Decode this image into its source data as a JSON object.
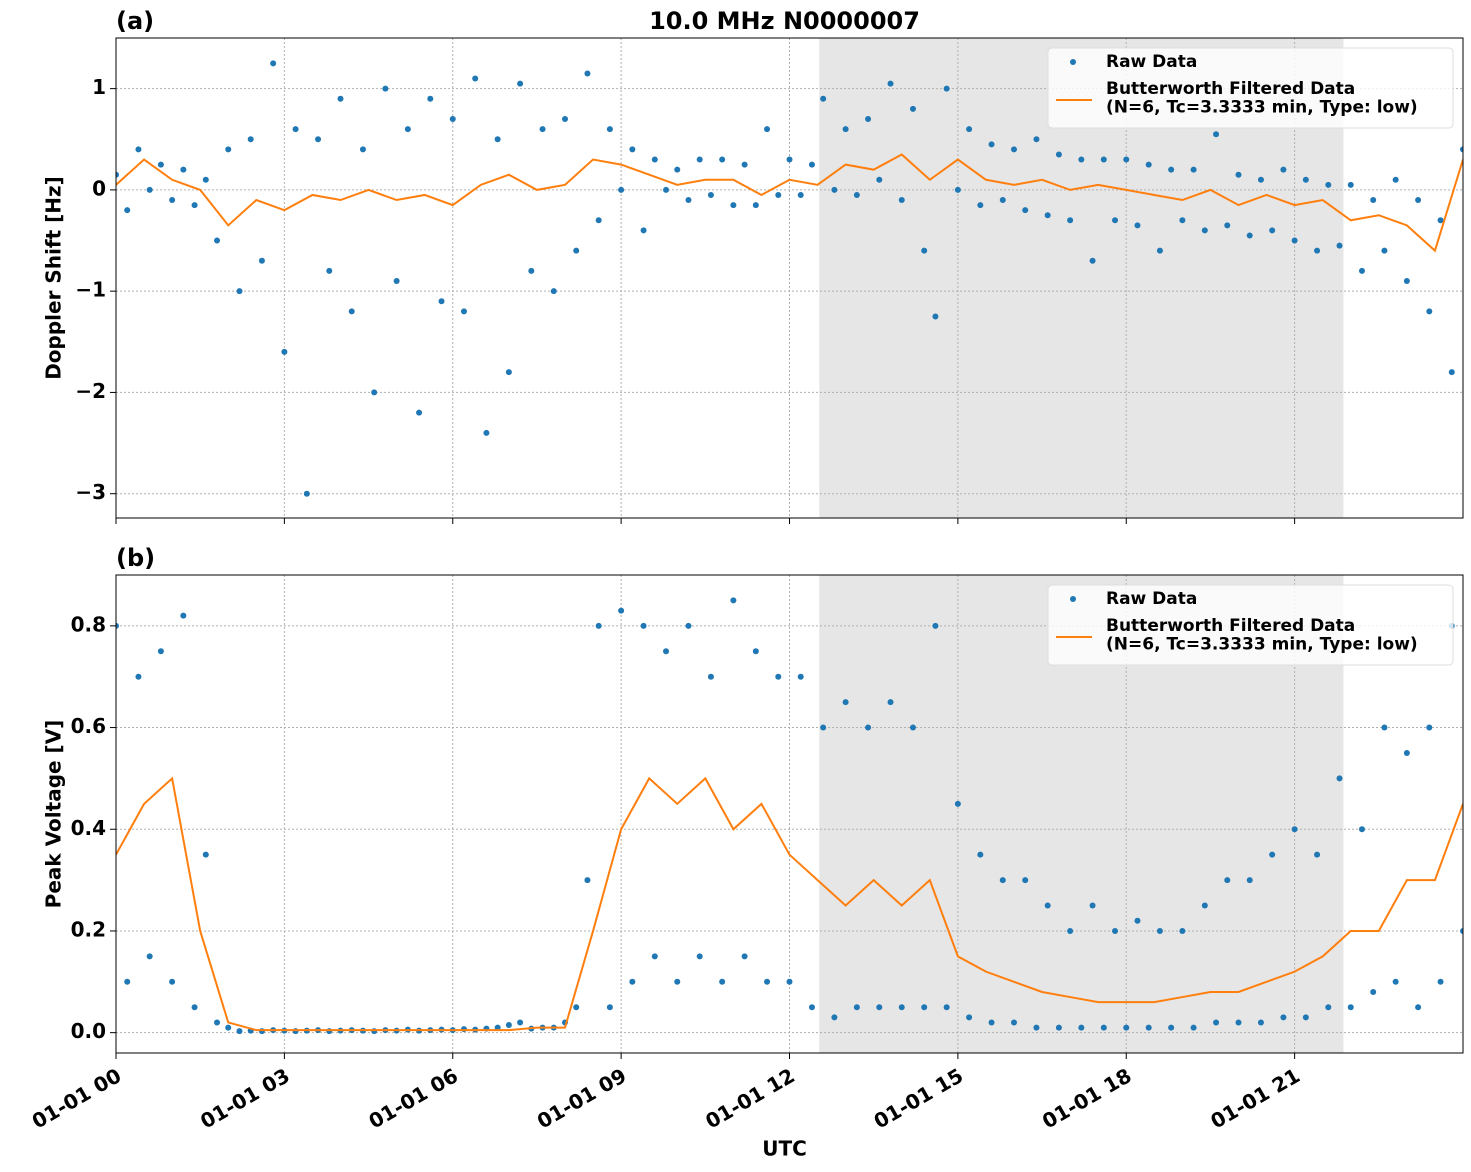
{
  "chart_data": [
    {
      "type": "scatter_line",
      "title": "10.0 MHz N0000007",
      "panel_label": "(a)",
      "y_label": "Doppler Shift [Hz]",
      "xlim": [
        0,
        24
      ],
      "xticks": [
        0,
        3,
        6,
        9,
        12,
        15,
        18,
        21
      ],
      "ylim": [
        -3.24,
        1.5
      ],
      "yticks": [
        {
          "value": -3,
          "label": "−3"
        },
        {
          "value": -2,
          "label": "−2"
        },
        {
          "value": -1,
          "label": "−1"
        },
        0,
        1
      ],
      "grid": true,
      "legend": "upper right",
      "shade": [
        12.53,
        21.87
      ],
      "shade_color": "#e6e6e6",
      "series": [
        {
          "name": "Raw Data",
          "type": "scatter",
          "color": "#1f77b4",
          "x": [
            0,
            0.2,
            0.4,
            0.6,
            0.8,
            1,
            1.2,
            1.4,
            1.6,
            1.8,
            2,
            2.2,
            2.4,
            2.6,
            2.8,
            3,
            3.2,
            3.4,
            3.6,
            3.8,
            4,
            4.2,
            4.4,
            4.6,
            4.8,
            5,
            5.2,
            5.4,
            5.6,
            5.8,
            6,
            6.2,
            6.4,
            6.6,
            6.8,
            7,
            7.2,
            7.4,
            7.6,
            7.8,
            8,
            8.2,
            8.4,
            8.6,
            8.8,
            9,
            9.2,
            9.4,
            9.6,
            9.8,
            10,
            10.2,
            10.4,
            10.6,
            10.8,
            11,
            11.2,
            11.4,
            11.6,
            11.8,
            12,
            12.2,
            12.4,
            12.6,
            12.8,
            13,
            13.2,
            13.4,
            13.6,
            13.8,
            14,
            14.2,
            14.4,
            14.6,
            14.8,
            15,
            15.2,
            15.4,
            15.6,
            15.8,
            16,
            16.2,
            16.4,
            16.6,
            16.8,
            17,
            17.2,
            17.4,
            17.6,
            17.8,
            18,
            18.2,
            18.4,
            18.6,
            18.8,
            19,
            19.2,
            19.4,
            19.6,
            19.8,
            20,
            20.2,
            20.4,
            20.6,
            20.8,
            21,
            21.2,
            21.4,
            21.6,
            21.8,
            22,
            22.2,
            22.4,
            22.6,
            22.8,
            23,
            23.2,
            23.4,
            23.6,
            23.8,
            24
          ],
          "values": [
            0.15,
            -0.2,
            0.4,
            0,
            0.25,
            -0.1,
            0.2,
            -0.15,
            0.1,
            -0.5,
            0.4,
            -1,
            0.5,
            -0.7,
            1.25,
            -1.6,
            0.6,
            -3,
            0.5,
            -0.8,
            0.9,
            -1.2,
            0.4,
            -2,
            1,
            -0.9,
            0.6,
            -2.2,
            0.9,
            -1.1,
            0.7,
            -1.2,
            1.1,
            -2.4,
            0.5,
            -1.8,
            1.05,
            -0.8,
            0.6,
            -1,
            0.7,
            -0.6,
            1.15,
            -0.3,
            0.6,
            0,
            0.4,
            -0.4,
            0.3,
            0,
            0.2,
            -0.1,
            0.3,
            -0.05,
            0.3,
            -0.15,
            0.25,
            -0.15,
            0.6,
            -0.05,
            0.3,
            -0.05,
            0.25,
            0.9,
            0,
            0.6,
            -0.05,
            0.7,
            0.1,
            1.05,
            -0.1,
            0.8,
            -0.6,
            -1.25,
            1,
            0,
            0.6,
            -0.15,
            0.45,
            -0.1,
            0.4,
            -0.2,
            0.5,
            -0.25,
            0.35,
            -0.3,
            0.3,
            -0.7,
            0.3,
            -0.3,
            0.3,
            -0.35,
            0.25,
            -0.6,
            0.2,
            -0.3,
            0.2,
            -0.4,
            0.55,
            -0.35,
            0.15,
            -0.45,
            0.1,
            -0.4,
            0.2,
            -0.5,
            0.1,
            -0.6,
            0.05,
            -0.55,
            0.05,
            -0.8,
            -0.1,
            -0.6,
            0.1,
            -0.9,
            -0.1,
            -1.2,
            -0.3,
            -1.8,
            0.4
          ]
        },
        {
          "name": "Butterworth Filtered Data\n(N=6, Tc=3.3333 min, Type: low)",
          "type": "line",
          "color": "#ff7f0e",
          "x": [
            0,
            0.5,
            1,
            1.5,
            2,
            2.5,
            3,
            3.5,
            4,
            4.5,
            5,
            5.5,
            6,
            6.5,
            7,
            7.5,
            8,
            8.5,
            9,
            9.5,
            10,
            10.5,
            11,
            11.5,
            12,
            12.5,
            13,
            13.5,
            14,
            14.5,
            15,
            15.5,
            16,
            16.5,
            17,
            17.5,
            18,
            18.5,
            19,
            19.5,
            20,
            20.5,
            21,
            21.5,
            22,
            22.5,
            23,
            23.5,
            24
          ],
          "values": [
            0.05,
            0.3,
            0.1,
            0,
            -0.35,
            -0.1,
            -0.2,
            -0.05,
            -0.1,
            0,
            -0.1,
            -0.05,
            -0.15,
            0.05,
            0.15,
            0,
            0.05,
            0.3,
            0.25,
            0.15,
            0.05,
            0.1,
            0.1,
            -0.05,
            0.1,
            0.05,
            0.25,
            0.2,
            0.35,
            0.1,
            0.3,
            0.1,
            0.05,
            0.1,
            0,
            0.05,
            0,
            -0.05,
            -0.1,
            0,
            -0.15,
            -0.05,
            -0.15,
            -0.1,
            -0.3,
            -0.25,
            -0.35,
            -0.6,
            0.3
          ]
        }
      ]
    },
    {
      "type": "scatter_line",
      "panel_label": "(b)",
      "y_label": "Peak Voltage [V]",
      "x_label": "UTC",
      "xlim": [
        0,
        24
      ],
      "xticks": [
        {
          "value": 0,
          "label": "01-01 00"
        },
        {
          "value": 3,
          "label": "01-01 03"
        },
        {
          "value": 6,
          "label": "01-01 06"
        },
        {
          "value": 9,
          "label": "01-01 09"
        },
        {
          "value": 12,
          "label": "01-01 12"
        },
        {
          "value": 15,
          "label": "01-01 15"
        },
        {
          "value": 18,
          "label": "01-01 18"
        },
        {
          "value": 21,
          "label": "01-01 21"
        }
      ],
      "ylim": [
        -0.04,
        0.9
      ],
      "yticks": [
        {
          "value": 0,
          "label": "0.0"
        },
        0.2,
        0.4,
        0.6,
        0.8
      ],
      "grid": true,
      "legend": "upper right",
      "shade": [
        12.53,
        21.87
      ],
      "shade_color": "#e6e6e6",
      "series": [
        {
          "name": "Raw Data",
          "type": "scatter",
          "color": "#1f77b4",
          "x": [
            0,
            0.2,
            0.4,
            0.6,
            0.8,
            1,
            1.2,
            1.4,
            1.6,
            1.8,
            2,
            2.2,
            2.4,
            2.6,
            2.8,
            3,
            3.2,
            3.4,
            3.6,
            3.8,
            4,
            4.2,
            4.4,
            4.6,
            4.8,
            5,
            5.2,
            5.4,
            5.6,
            5.8,
            6,
            6.2,
            6.4,
            6.6,
            6.8,
            7,
            7.2,
            7.4,
            7.6,
            7.8,
            8,
            8.2,
            8.4,
            8.6,
            8.8,
            9,
            9.2,
            9.4,
            9.6,
            9.8,
            10,
            10.2,
            10.4,
            10.6,
            10.8,
            11,
            11.2,
            11.4,
            11.6,
            11.8,
            12,
            12.2,
            12.4,
            12.6,
            12.8,
            13,
            13.2,
            13.4,
            13.6,
            13.8,
            14,
            14.2,
            14.4,
            14.6,
            14.8,
            15,
            15.2,
            15.4,
            15.6,
            15.8,
            16,
            16.2,
            16.4,
            16.6,
            16.8,
            17,
            17.2,
            17.4,
            17.6,
            17.8,
            18,
            18.2,
            18.4,
            18.6,
            18.8,
            19,
            19.2,
            19.4,
            19.6,
            19.8,
            20,
            20.2,
            20.4,
            20.6,
            20.8,
            21,
            21.2,
            21.4,
            21.6,
            21.8,
            22,
            22.2,
            22.4,
            22.6,
            22.8,
            23,
            23.2,
            23.4,
            23.6,
            23.8,
            24
          ],
          "values": [
            0.8,
            0.1,
            0.7,
            0.15,
            0.75,
            0.1,
            0.82,
            0.05,
            0.35,
            0.02,
            0.01,
            0.003,
            0.004,
            0.003,
            0.005,
            0.004,
            0.003,
            0.004,
            0.005,
            0.003,
            0.004,
            0.005,
            0.004,
            0.003,
            0.005,
            0.004,
            0.006,
            0.004,
            0.005,
            0.006,
            0.005,
            0.007,
            0.006,
            0.008,
            0.01,
            0.015,
            0.02,
            0.008,
            0.01,
            0.01,
            0.02,
            0.05,
            0.3,
            0.8,
            0.05,
            0.83,
            0.1,
            0.8,
            0.15,
            0.75,
            0.1,
            0.8,
            0.15,
            0.7,
            0.1,
            0.85,
            0.15,
            0.75,
            0.1,
            0.7,
            0.1,
            0.7,
            0.05,
            0.6,
            0.03,
            0.65,
            0.05,
            0.6,
            0.05,
            0.65,
            0.05,
            0.6,
            0.05,
            0.8,
            0.05,
            0.45,
            0.03,
            0.35,
            0.02,
            0.3,
            0.02,
            0.3,
            0.01,
            0.25,
            0.01,
            0.2,
            0.01,
            0.25,
            0.01,
            0.2,
            0.01,
            0.22,
            0.01,
            0.2,
            0.01,
            0.2,
            0.01,
            0.25,
            0.02,
            0.3,
            0.02,
            0.3,
            0.02,
            0.35,
            0.03,
            0.4,
            0.03,
            0.35,
            0.05,
            0.5,
            0.05,
            0.4,
            0.08,
            0.6,
            0.1,
            0.55,
            0.05,
            0.6,
            0.1,
            0.8,
            0.2
          ]
        },
        {
          "name": "Butterworth Filtered Data\n(N=6, Tc=3.3333 min, Type: low)",
          "type": "line",
          "color": "#ff7f0e",
          "x": [
            0,
            0.5,
            1,
            1.5,
            2,
            2.5,
            3,
            3.5,
            4,
            4.5,
            5,
            5.5,
            6,
            6.5,
            7,
            7.5,
            8,
            8.5,
            9,
            9.5,
            10,
            10.5,
            11,
            11.5,
            12,
            12.5,
            13,
            13.5,
            14,
            14.5,
            15,
            15.5,
            16,
            16.5,
            17,
            17.5,
            18,
            18.5,
            19,
            19.5,
            20,
            20.5,
            21,
            21.5,
            22,
            22.5,
            23,
            23.5,
            24
          ],
          "values": [
            0.35,
            0.45,
            0.5,
            0.2,
            0.02,
            0.005,
            0.005,
            0.005,
            0.005,
            0.005,
            0.005,
            0.005,
            0.005,
            0.005,
            0.005,
            0.01,
            0.01,
            0.2,
            0.4,
            0.5,
            0.45,
            0.5,
            0.4,
            0.45,
            0.35,
            0.3,
            0.25,
            0.3,
            0.25,
            0.3,
            0.15,
            0.12,
            0.1,
            0.08,
            0.07,
            0.06,
            0.06,
            0.06,
            0.07,
            0.08,
            0.08,
            0.1,
            0.12,
            0.15,
            0.2,
            0.2,
            0.3,
            0.3,
            0.45
          ]
        }
      ]
    }
  ]
}
